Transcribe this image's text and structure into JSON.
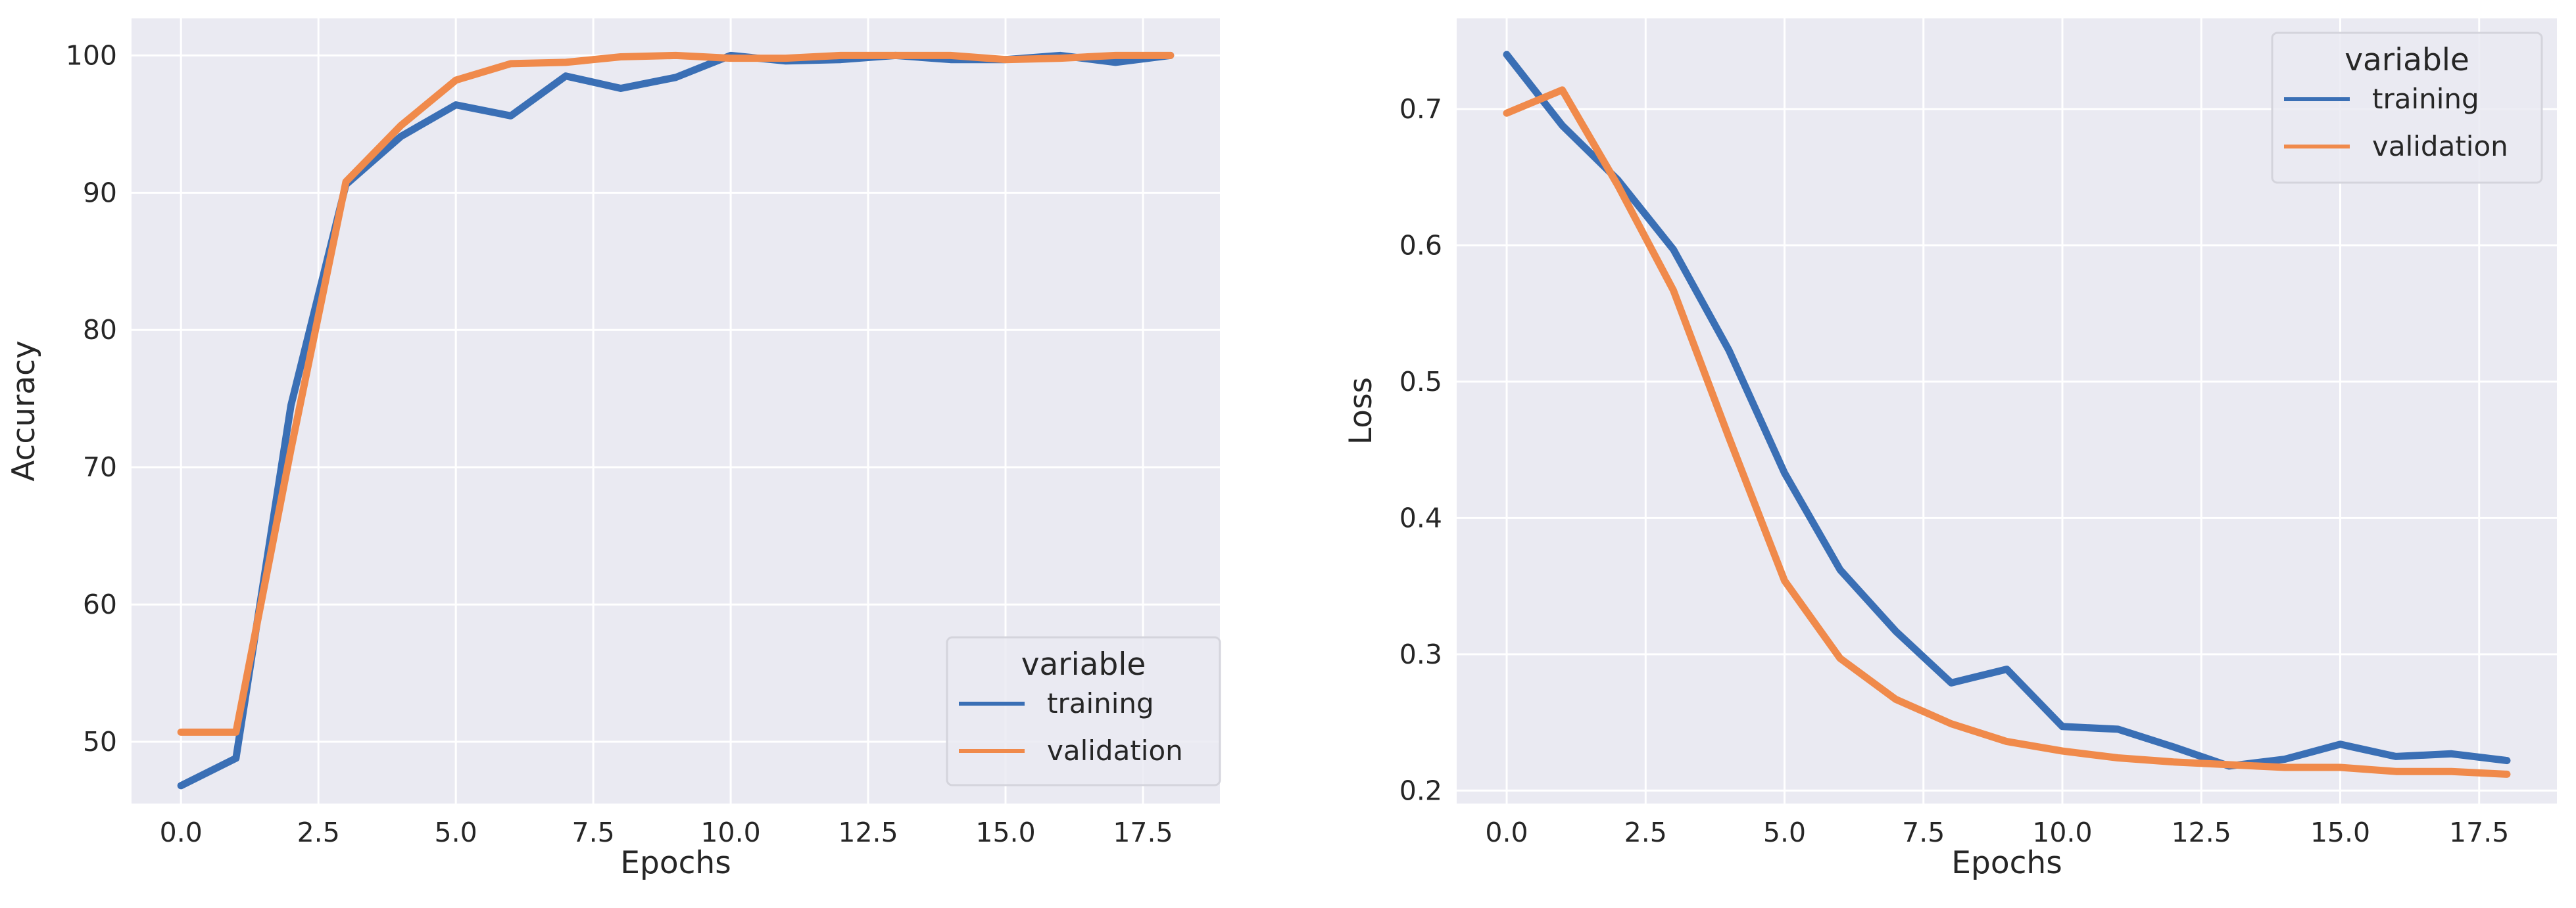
{
  "chart_data": [
    {
      "type": "line",
      "title": "",
      "xlabel": "Epochs",
      "ylabel": "Accuracy",
      "xlim": [
        -0.9,
        18.9
      ],
      "ylim": [
        45.5,
        102.7
      ],
      "xticks": [
        0,
        2.5,
        5,
        7.5,
        10,
        12.5,
        15,
        17.5
      ],
      "xtick_labels": [
        "0.0",
        "2.5",
        "5.0",
        "7.5",
        "10.0",
        "12.5",
        "15.0",
        "17.5"
      ],
      "yticks": [
        50,
        60,
        70,
        80,
        90,
        100
      ],
      "ytick_labels": [
        "50",
        "60",
        "70",
        "80",
        "90",
        "100"
      ],
      "grid": true,
      "x": [
        0,
        1,
        2,
        3,
        4,
        5,
        6,
        7,
        8,
        9,
        10,
        11,
        12,
        13,
        14,
        15,
        16,
        17,
        18
      ],
      "series": [
        {
          "name": "training",
          "color": "#3a6fb5",
          "values": [
            46.8,
            48.8,
            74.5,
            90.6,
            94.1,
            96.4,
            95.6,
            98.5,
            97.6,
            98.4,
            100.0,
            99.6,
            99.7,
            100.0,
            99.7,
            99.7,
            100.0,
            99.5,
            100.0
          ]
        },
        {
          "name": "validation",
          "color": "#f08a4b",
          "values": [
            50.7,
            50.7,
            71.3,
            90.8,
            94.9,
            98.2,
            99.4,
            99.5,
            99.9,
            100.0,
            99.8,
            99.8,
            100.0,
            100.0,
            100.0,
            99.7,
            99.8,
            100.0,
            100.0
          ]
        }
      ],
      "legend": {
        "title": "variable",
        "position": "lower-right",
        "labels": [
          "training",
          "validation"
        ]
      }
    },
    {
      "type": "line",
      "title": "",
      "xlabel": "Epochs",
      "ylabel": "Loss",
      "xlim": [
        -0.9,
        18.9
      ],
      "ylim": [
        0.1905,
        0.7665
      ],
      "xticks": [
        0,
        2.5,
        5,
        7.5,
        10,
        12.5,
        15,
        17.5
      ],
      "xtick_labels": [
        "0.0",
        "2.5",
        "5.0",
        "7.5",
        "10.0",
        "12.5",
        "15.0",
        "17.5"
      ],
      "yticks": [
        0.2,
        0.3,
        0.4,
        0.5,
        0.6,
        0.7
      ],
      "ytick_labels": [
        "0.2",
        "0.3",
        "0.4",
        "0.5",
        "0.6",
        "0.7"
      ],
      "grid": true,
      "x": [
        0,
        1,
        2,
        3,
        4,
        5,
        6,
        7,
        8,
        9,
        10,
        11,
        12,
        13,
        14,
        15,
        16,
        17,
        18
      ],
      "series": [
        {
          "name": "training",
          "color": "#3a6fb5",
          "values": [
            0.74,
            0.688,
            0.648,
            0.597,
            0.523,
            0.433,
            0.362,
            0.317,
            0.279,
            0.289,
            0.247,
            0.245,
            0.232,
            0.218,
            0.223,
            0.234,
            0.225,
            0.227,
            0.222
          ]
        },
        {
          "name": "validation",
          "color": "#f08a4b",
          "values": [
            0.697,
            0.714,
            0.644,
            0.567,
            0.459,
            0.354,
            0.297,
            0.267,
            0.249,
            0.236,
            0.229,
            0.224,
            0.221,
            0.219,
            0.217,
            0.217,
            0.214,
            0.214,
            0.212
          ]
        }
      ],
      "legend": {
        "title": "variable",
        "position": "upper-right",
        "labels": [
          "training",
          "validation"
        ]
      }
    }
  ]
}
